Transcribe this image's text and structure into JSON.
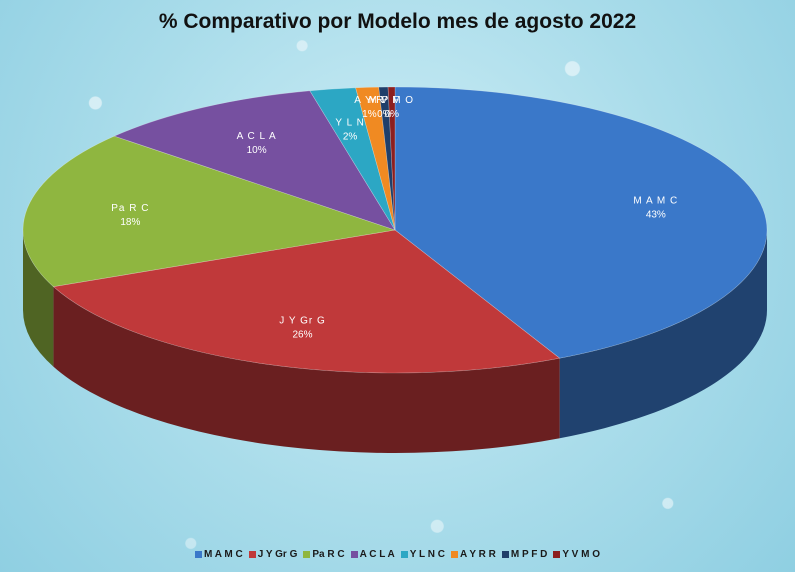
{
  "chart_data": {
    "type": "pie",
    "title": "% Comparativo por Modelo mes de agosto 2022",
    "three_d": true,
    "legend_position": "bottom",
    "slices": [
      {
        "name": "M A M C",
        "legend": "M A M C",
        "label": "M A M C",
        "percent_label": "43%",
        "value": 43,
        "color": "#3a78c9"
      },
      {
        "name": "J Y Gr G",
        "legend": "J Y Gr G",
        "label": "J Y Gr G",
        "percent_label": "26%",
        "value": 26,
        "color": "#c0393a"
      },
      {
        "name": "Pa R C",
        "legend": "Pa R C",
        "label": "Pa R C",
        "percent_label": "18%",
        "value": 18,
        "color": "#8fb640"
      },
      {
        "name": "A C L A",
        "legend": "A C L A",
        "label": "A C L A",
        "percent_label": "10%",
        "value": 10,
        "color": "#7650a0"
      },
      {
        "name": "Y L N C",
        "legend": "Y L N C",
        "label": "Y L N",
        "percent_label": "2%",
        "value": 2,
        "color": "#2ca7c4"
      },
      {
        "name": "A Y R R",
        "legend": "A Y R R",
        "label": "A Y R",
        "percent_label": "1%",
        "value": 1,
        "color": "#f08a22"
      },
      {
        "name": "M P F D",
        "legend": "M P F D",
        "label": "M P F",
        "percent_label": "0%",
        "value": 0.4,
        "color": "#1f3f6a"
      },
      {
        "name": "Y V M O",
        "legend": "Y V M O",
        "label": "Y V M O",
        "percent_label": "0%",
        "value": 0.3,
        "color": "#8c1f1f"
      }
    ]
  }
}
